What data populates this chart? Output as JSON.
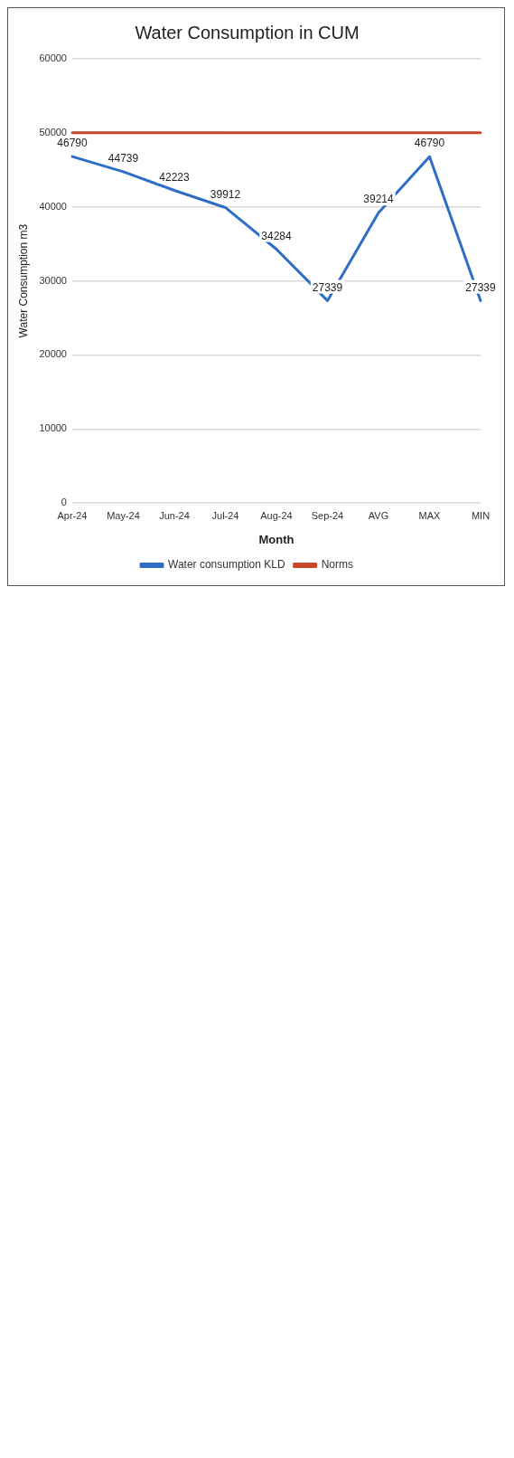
{
  "chart_data": {
    "type": "line",
    "title": "Water Consumption in CUM",
    "xlabel": "Month",
    "ylabel": "Water Consumption m3",
    "categories": [
      "Apr-24",
      "May-24",
      "Jun-24",
      "Jul-24",
      "Aug-24",
      "Sep-24",
      "AVG",
      "MAX",
      "MIN"
    ],
    "series": [
      {
        "name": "Water consumption KLD",
        "color": "#2e6ec6",
        "values": [
          46790,
          44739,
          42223,
          39912,
          34284,
          27339,
          39214,
          46790,
          27339
        ],
        "value_labels": [
          "46790",
          "44739",
          "42223",
          "39912",
          "34284",
          "27339",
          "39214",
          "46790",
          "27339"
        ]
      },
      {
        "name": "Norms",
        "color": "#c8462a",
        "values": [
          50000,
          50000,
          50000,
          50000,
          50000,
          50000,
          50000,
          50000,
          50000
        ]
      }
    ],
    "ylim": [
      0,
      60000
    ],
    "yticks": [
      0,
      10000,
      20000,
      30000,
      40000,
      50000,
      60000
    ],
    "grid": "y",
    "legend": "bottom",
    "marker": "none",
    "line_style": "solid"
  }
}
